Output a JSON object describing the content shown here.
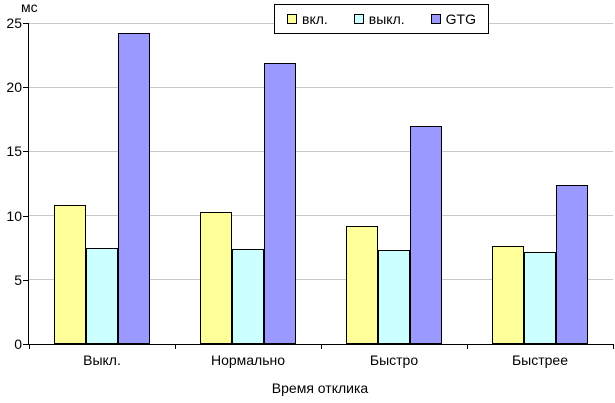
{
  "chart_data": {
    "type": "bar",
    "title": "",
    "ylabel": "мс",
    "xlabel": "Время отклика",
    "ylim": [
      0,
      25
    ],
    "ytick_step": 5,
    "grid": true,
    "legend_position": "top-center",
    "categories": [
      "Выкл.",
      "Нормально",
      "Быстро",
      "Быстрее"
    ],
    "series": [
      {
        "name": "вкл.",
        "color": "#FFFF99",
        "values": [
          10.8,
          10.3,
          9.2,
          7.6
        ]
      },
      {
        "name": "выкл.",
        "color": "#CCFFFF",
        "values": [
          7.5,
          7.4,
          7.3,
          7.2
        ]
      },
      {
        "name": "GTG",
        "color": "#9999FF",
        "values": [
          24.2,
          21.9,
          17.0,
          12.4
        ]
      }
    ],
    "colors": {
      "gridline": "#c9c9c9",
      "axis": "#000000",
      "background": "#ffffff"
    }
  }
}
